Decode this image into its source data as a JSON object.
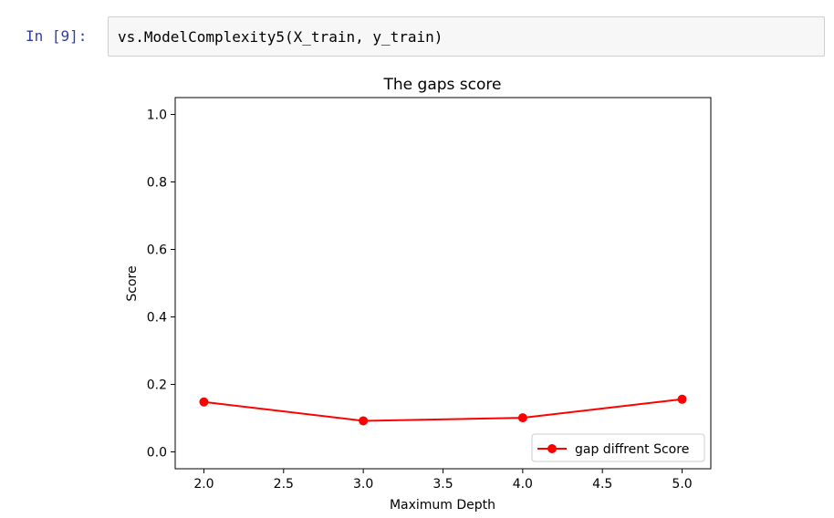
{
  "notebook": {
    "prompt": "In [9]:",
    "code": "vs.ModelComplexity5(X_train, y_train)"
  },
  "chart_data": {
    "type": "line",
    "title": "The gaps score",
    "xlabel": "Maximum Depth",
    "ylabel": "Score",
    "xlim": [
      1.82,
      5.18
    ],
    "ylim": [
      -0.05,
      1.05
    ],
    "x_ticks": [
      2.0,
      2.5,
      3.0,
      3.5,
      4.0,
      4.5,
      5.0
    ],
    "x_tick_labels": [
      "2.0",
      "2.5",
      "3.0",
      "3.5",
      "4.0",
      "4.5",
      "5.0"
    ],
    "y_ticks": [
      0.0,
      0.2,
      0.4,
      0.6,
      0.8,
      1.0
    ],
    "y_tick_labels": [
      "0.0",
      "0.2",
      "0.4",
      "0.6",
      "0.8",
      "1.0"
    ],
    "grid": false,
    "legend_position": "lower-right",
    "series": [
      {
        "name": "gap diffrent Score",
        "color": "#ff0000",
        "marker": "o",
        "x": [
          2,
          3,
          4,
          5
        ],
        "values": [
          0.148,
          0.092,
          0.101,
          0.156
        ]
      }
    ]
  }
}
